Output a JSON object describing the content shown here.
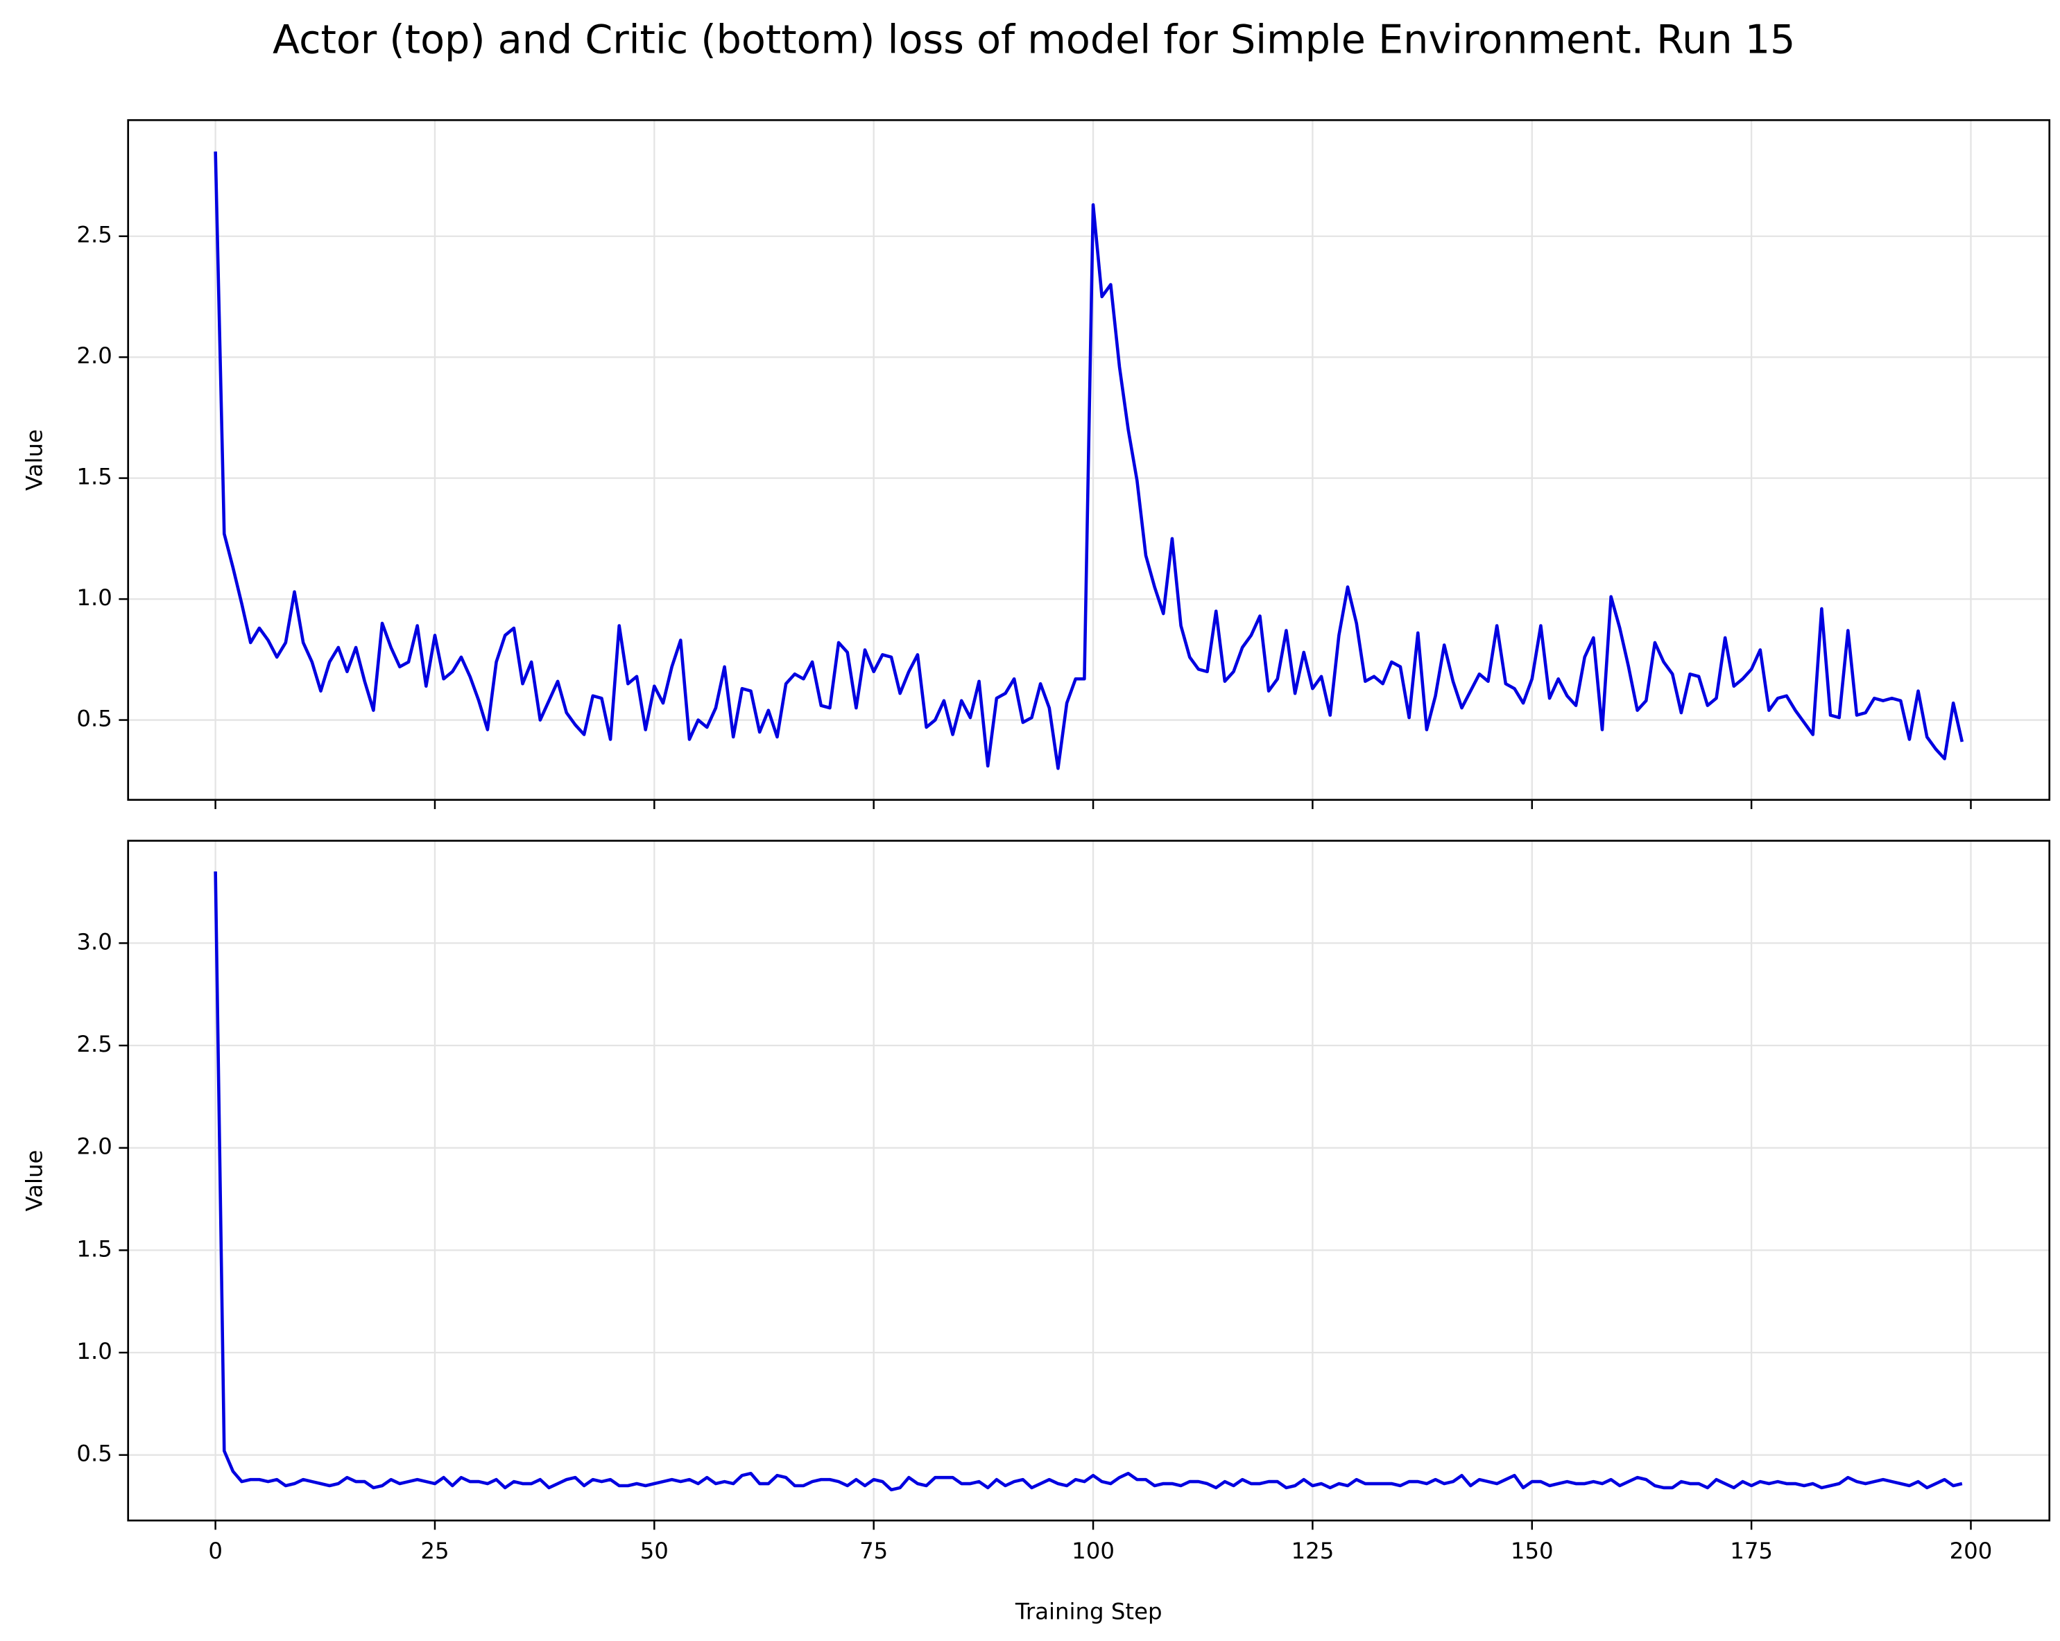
{
  "title": "Actor (top) and Critic (bottom) loss of model for Simple Environment. Run 15",
  "chart_data": [
    {
      "type": "line",
      "ylabel": "Value",
      "x": [
        0,
        1,
        2,
        3,
        4,
        5,
        6,
        7,
        8,
        9,
        10,
        11,
        12,
        13,
        14,
        15,
        16,
        17,
        18,
        19,
        20,
        21,
        22,
        23,
        24,
        25,
        26,
        27,
        28,
        29,
        30,
        31,
        32,
        33,
        34,
        35,
        36,
        37,
        38,
        39,
        40,
        41,
        42,
        43,
        44,
        45,
        46,
        47,
        48,
        49,
        50,
        51,
        52,
        53,
        54,
        55,
        56,
        57,
        58,
        59,
        60,
        61,
        62,
        63,
        64,
        65,
        66,
        67,
        68,
        69,
        70,
        71,
        72,
        73,
        74,
        75,
        76,
        77,
        78,
        79,
        80,
        81,
        82,
        83,
        84,
        85,
        86,
        87,
        88,
        89,
        90,
        91,
        92,
        93,
        94,
        95,
        96,
        97,
        98,
        99,
        100,
        101,
        102,
        103,
        104,
        105,
        106,
        107,
        108,
        109,
        110,
        111,
        112,
        113,
        114,
        115,
        116,
        117,
        118,
        119,
        120,
        121,
        122,
        123,
        124,
        125,
        126,
        127,
        128,
        129,
        130,
        131,
        132,
        133,
        134,
        135,
        136,
        137,
        138,
        139,
        140,
        141,
        142,
        143,
        144,
        145,
        146,
        147,
        148,
        149,
        150,
        151,
        152,
        153,
        154,
        155,
        156,
        157,
        158,
        159,
        160,
        161,
        162,
        163,
        164,
        165,
        166,
        167,
        168,
        169,
        170,
        171,
        172,
        173,
        174,
        175,
        176,
        177,
        178,
        179,
        180,
        181,
        182,
        183,
        184,
        185,
        186,
        187,
        188,
        189,
        190,
        191,
        192,
        193,
        194,
        195,
        196,
        197,
        198,
        199
      ],
      "series": [
        {
          "color": "#0000e0",
          "values": [
            2.85,
            1.27,
            1.13,
            0.98,
            0.82,
            0.88,
            0.83,
            0.76,
            0.82,
            1.03,
            0.82,
            0.74,
            0.62,
            0.74,
            0.8,
            0.7,
            0.8,
            0.66,
            0.54,
            0.9,
            0.8,
            0.72,
            0.74,
            0.89,
            0.64,
            0.85,
            0.67,
            0.7,
            0.76,
            0.68,
            0.58,
            0.46,
            0.74,
            0.85,
            0.88,
            0.65,
            0.74,
            0.5,
            0.58,
            0.66,
            0.53,
            0.48,
            0.44,
            0.6,
            0.59,
            0.42,
            0.89,
            0.65,
            0.68,
            0.46,
            0.64,
            0.57,
            0.72,
            0.83,
            0.42,
            0.5,
            0.47,
            0.55,
            0.72,
            0.43,
            0.63,
            0.62,
            0.45,
            0.54,
            0.43,
            0.65,
            0.69,
            0.67,
            0.74,
            0.56,
            0.55,
            0.82,
            0.78,
            0.55,
            0.79,
            0.7,
            0.77,
            0.76,
            0.61,
            0.7,
            0.77,
            0.47,
            0.5,
            0.58,
            0.44,
            0.58,
            0.51,
            0.66,
            0.31,
            0.59,
            0.61,
            0.67,
            0.49,
            0.51,
            0.65,
            0.55,
            0.3,
            0.57,
            0.67,
            0.67,
            2.63,
            2.25,
            2.3,
            1.96,
            1.7,
            1.49,
            1.18,
            1.05,
            0.94,
            1.25,
            0.89,
            0.76,
            0.71,
            0.7,
            0.95,
            0.66,
            0.7,
            0.8,
            0.85,
            0.93,
            0.62,
            0.67,
            0.87,
            0.61,
            0.78,
            0.63,
            0.68,
            0.52,
            0.85,
            1.05,
            0.9,
            0.66,
            0.68,
            0.65,
            0.74,
            0.72,
            0.51,
            0.86,
            0.46,
            0.6,
            0.81,
            0.66,
            0.55,
            0.62,
            0.69,
            0.66,
            0.89,
            0.65,
            0.63,
            0.57,
            0.67,
            0.89,
            0.59,
            0.67,
            0.6,
            0.56,
            0.76,
            0.84,
            0.46,
            1.01,
            0.88,
            0.72,
            0.54,
            0.58,
            0.82,
            0.74,
            0.69,
            0.53,
            0.69,
            0.68,
            0.56,
            0.59,
            0.84,
            0.64,
            0.67,
            0.71,
            0.79,
            0.54,
            0.59,
            0.6,
            0.54,
            0.49,
            0.44,
            0.96,
            0.52,
            0.51,
            0.87,
            0.52,
            0.53,
            0.59,
            0.58,
            0.59,
            0.58,
            0.42,
            0.62,
            0.43,
            0.38,
            0.34,
            0.57,
            0.41
          ]
        }
      ],
      "xlim": [
        -9.95,
        208.95
      ],
      "xticks": [
        0,
        25,
        50,
        75,
        100,
        125,
        150,
        175,
        200
      ],
      "ylim": [
        0.17,
        2.98
      ],
      "yticks": [
        0.5,
        {
          "value": 1,
          "label": "1.0"
        },
        1.5,
        {
          "value": 2,
          "label": "2.0"
        },
        2.5
      ],
      "grid": true
    },
    {
      "type": "line",
      "ylabel": "Value",
      "xlabel": "Training Step",
      "x": [
        0,
        1,
        2,
        3,
        4,
        5,
        6,
        7,
        8,
        9,
        10,
        11,
        12,
        13,
        14,
        15,
        16,
        17,
        18,
        19,
        20,
        21,
        22,
        23,
        24,
        25,
        26,
        27,
        28,
        29,
        30,
        31,
        32,
        33,
        34,
        35,
        36,
        37,
        38,
        39,
        40,
        41,
        42,
        43,
        44,
        45,
        46,
        47,
        48,
        49,
        50,
        51,
        52,
        53,
        54,
        55,
        56,
        57,
        58,
        59,
        60,
        61,
        62,
        63,
        64,
        65,
        66,
        67,
        68,
        69,
        70,
        71,
        72,
        73,
        74,
        75,
        76,
        77,
        78,
        79,
        80,
        81,
        82,
        83,
        84,
        85,
        86,
        87,
        88,
        89,
        90,
        91,
        92,
        93,
        94,
        95,
        96,
        97,
        98,
        99,
        100,
        101,
        102,
        103,
        104,
        105,
        106,
        107,
        108,
        109,
        110,
        111,
        112,
        113,
        114,
        115,
        116,
        117,
        118,
        119,
        120,
        121,
        122,
        123,
        124,
        125,
        126,
        127,
        128,
        129,
        130,
        131,
        132,
        133,
        134,
        135,
        136,
        137,
        138,
        139,
        140,
        141,
        142,
        143,
        144,
        145,
        146,
        147,
        148,
        149,
        150,
        151,
        152,
        153,
        154,
        155,
        156,
        157,
        158,
        159,
        160,
        161,
        162,
        163,
        164,
        165,
        166,
        167,
        168,
        169,
        170,
        171,
        172,
        173,
        174,
        175,
        176,
        177,
        178,
        179,
        180,
        181,
        182,
        183,
        184,
        185,
        186,
        187,
        188,
        189,
        190,
        191,
        192,
        193,
        194,
        195,
        196,
        197,
        198,
        199
      ],
      "series": [
        {
          "color": "#0000e0",
          "values": [
            3.35,
            0.52,
            0.42,
            0.37,
            0.38,
            0.38,
            0.37,
            0.38,
            0.35,
            0.36,
            0.38,
            0.37,
            0.36,
            0.35,
            0.36,
            0.39,
            0.37,
            0.37,
            0.34,
            0.35,
            0.38,
            0.36,
            0.37,
            0.38,
            0.37,
            0.36,
            0.39,
            0.35,
            0.39,
            0.37,
            0.37,
            0.36,
            0.38,
            0.34,
            0.37,
            0.36,
            0.36,
            0.38,
            0.34,
            0.36,
            0.38,
            0.39,
            0.35,
            0.38,
            0.37,
            0.38,
            0.35,
            0.35,
            0.36,
            0.35,
            0.36,
            0.37,
            0.38,
            0.37,
            0.38,
            0.36,
            0.39,
            0.36,
            0.37,
            0.36,
            0.4,
            0.41,
            0.36,
            0.36,
            0.4,
            0.39,
            0.35,
            0.35,
            0.37,
            0.38,
            0.38,
            0.37,
            0.35,
            0.38,
            0.35,
            0.38,
            0.37,
            0.33,
            0.34,
            0.39,
            0.36,
            0.35,
            0.39,
            0.39,
            0.39,
            0.36,
            0.36,
            0.37,
            0.34,
            0.38,
            0.35,
            0.37,
            0.38,
            0.34,
            0.36,
            0.38,
            0.36,
            0.35,
            0.38,
            0.37,
            0.4,
            0.37,
            0.36,
            0.39,
            0.41,
            0.38,
            0.38,
            0.35,
            0.36,
            0.36,
            0.35,
            0.37,
            0.37,
            0.36,
            0.34,
            0.37,
            0.35,
            0.38,
            0.36,
            0.36,
            0.37,
            0.37,
            0.34,
            0.35,
            0.38,
            0.35,
            0.36,
            0.34,
            0.36,
            0.35,
            0.38,
            0.36,
            0.36,
            0.36,
            0.36,
            0.35,
            0.37,
            0.37,
            0.36,
            0.38,
            0.36,
            0.37,
            0.4,
            0.35,
            0.38,
            0.37,
            0.36,
            0.38,
            0.4,
            0.34,
            0.37,
            0.37,
            0.35,
            0.36,
            0.37,
            0.36,
            0.36,
            0.37,
            0.36,
            0.38,
            0.35,
            0.37,
            0.39,
            0.38,
            0.35,
            0.34,
            0.34,
            0.37,
            0.36,
            0.36,
            0.34,
            0.38,
            0.36,
            0.34,
            0.37,
            0.35,
            0.37,
            0.36,
            0.37,
            0.36,
            0.36,
            0.35,
            0.36,
            0.34,
            0.35,
            0.36,
            0.39,
            0.37,
            0.36,
            0.37,
            0.38,
            0.37,
            0.36,
            0.35,
            0.37,
            0.34,
            0.36,
            0.38,
            0.35,
            0.36
          ]
        }
      ],
      "xlim": [
        -9.95,
        208.95
      ],
      "xticks": [
        0,
        25,
        50,
        75,
        100,
        125,
        150,
        175,
        200
      ],
      "ylim": [
        0.18,
        3.5
      ],
      "yticks": [
        0.5,
        {
          "value": 1,
          "label": "1.0"
        },
        1.5,
        {
          "value": 2,
          "label": "2.0"
        },
        2.5,
        {
          "value": 3,
          "label": "3.0"
        }
      ],
      "grid": true
    }
  ]
}
